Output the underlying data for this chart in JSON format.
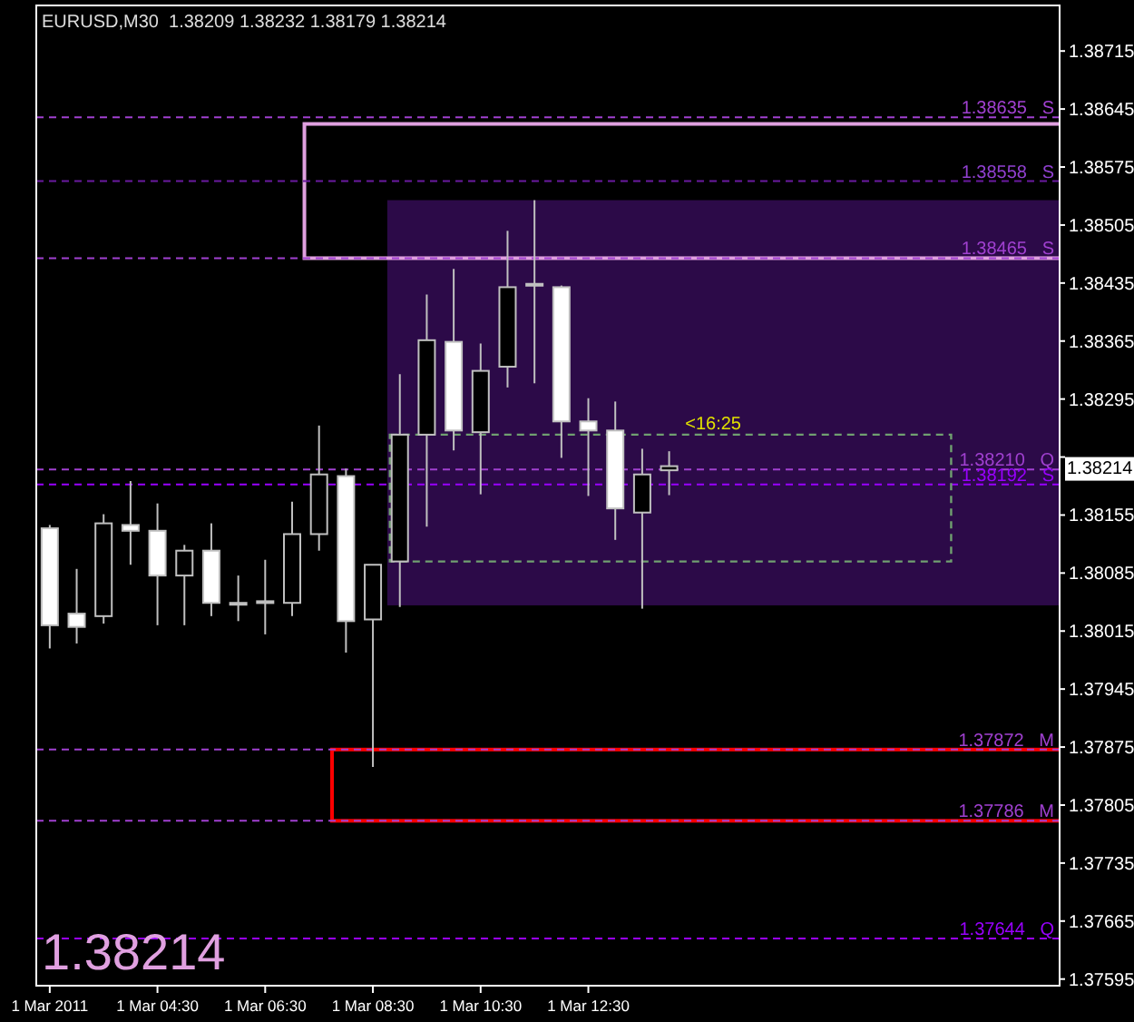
{
  "chart_data": {
    "type": "candlestick",
    "title": "EURUSD,M30  1.38209 1.38232 1.38179 1.38214",
    "categories": [
      "1 Mar 2011",
      null,
      null,
      null,
      "1 Mar 04:30",
      null,
      null,
      null,
      "1 Mar 06:30",
      null,
      null,
      null,
      "1 Mar 08:30",
      null,
      null,
      null,
      "1 Mar 10:30",
      null,
      null,
      null,
      "1 Mar 12:30",
      null,
      null,
      null,
      null,
      null,
      null,
      null,
      null,
      null,
      null,
      null,
      null,
      null,
      null,
      null,
      null,
      null
    ],
    "ohlc": [
      [
        1.38139,
        1.38143,
        1.37994,
        1.38022
      ],
      [
        1.38036,
        1.3809,
        1.38,
        1.3802
      ],
      [
        1.38033,
        1.38156,
        1.38024,
        1.38145
      ],
      [
        1.38143,
        1.38196,
        1.38095,
        1.38136
      ],
      [
        1.38136,
        1.38169,
        1.38022,
        1.38082
      ],
      [
        1.38082,
        1.38119,
        1.38022,
        1.38112
      ],
      [
        1.38112,
        1.38145,
        1.38033,
        1.38049
      ],
      [
        1.38049,
        1.38082,
        1.38027,
        1.38049
      ],
      [
        1.38051,
        1.38101,
        1.38011,
        1.38051
      ],
      [
        1.38049,
        1.38171,
        1.38033,
        1.38132
      ],
      [
        1.38132,
        1.38263,
        1.38112,
        1.38204
      ],
      [
        1.38202,
        1.38211,
        1.37989,
        1.38027
      ],
      [
        1.38029,
        1.38095,
        1.37851,
        1.38095
      ],
      [
        1.38099,
        1.38325,
        1.38044,
        1.38252
      ],
      [
        1.38252,
        1.38421,
        1.38141,
        1.38366
      ],
      [
        1.38364,
        1.38452,
        1.38233,
        1.38257
      ],
      [
        1.38255,
        1.38362,
        1.3818,
        1.38329
      ],
      [
        1.38334,
        1.38498,
        1.38309,
        1.3843
      ],
      [
        1.38434,
        1.38535,
        1.38314,
        1.38434
      ],
      [
        1.3843,
        1.38432,
        1.38224,
        1.38268
      ],
      [
        1.38268,
        1.38296,
        1.38178,
        1.38257
      ],
      [
        1.38257,
        1.38292,
        1.38125,
        1.38163
      ],
      [
        1.38158,
        1.38235,
        1.38042,
        1.38204
      ],
      [
        1.38209,
        1.38232,
        1.38179,
        1.38214
      ],
      null,
      null,
      null,
      null,
      null,
      null,
      null,
      null,
      null,
      null,
      null,
      null,
      null,
      null
    ],
    "color": "#c0c0c0",
    "ylim": [
      1.37587,
      1.3877
    ],
    "yticks": [
      1.38715,
      1.38645,
      1.38575,
      1.38505,
      1.38435,
      1.38365,
      1.38295,
      {
        "value": 1.38225,
        "label": null
      },
      1.38155,
      1.38085,
      1.38015,
      1.37945,
      1.37875,
      1.37805,
      1.37735,
      1.37665,
      1.37595
    ],
    "bands": [
      {
        "axis": "y",
        "from": 1.38046,
        "to": 1.38535,
        "color": "#2c0a48"
      }
    ],
    "ref_lines": [
      {
        "axis": "y",
        "value": 1.38635,
        "label": "1.38635   S",
        "color": "#a040d0",
        "line_style": "dashed"
      },
      {
        "axis": "y",
        "value": 1.38558,
        "label": "1.38558   S",
        "color": "#6a1aa0",
        "line_style": "dashed"
      },
      {
        "axis": "y",
        "value": 1.38465,
        "label": "1.38465   S",
        "color": "#a040d0",
        "line_style": "dashed"
      },
      {
        "axis": "y",
        "value": 1.3821,
        "label": "1.38210   Q",
        "color": "#a040d0",
        "line_style": "dashed"
      },
      {
        "axis": "y",
        "value": 1.38192,
        "label": "1.38192   S",
        "color": "#9900ff",
        "line_style": "dashed"
      },
      {
        "axis": "y",
        "value": 1.37872,
        "label": "1.37872   M",
        "color": "#a040d0",
        "line_style": "dashed"
      },
      {
        "axis": "y",
        "value": 1.37786,
        "label": "1.37786   M",
        "color": "#a040d0",
        "line_style": "dashed"
      },
      {
        "axis": "y",
        "value": 1.37644,
        "label": "1.37644   Q",
        "color": "#9900ff",
        "line_style": "dashed"
      }
    ],
    "annotations": [
      "<16:25",
      "1.38214",
      "1.38214"
    ]
  }
}
